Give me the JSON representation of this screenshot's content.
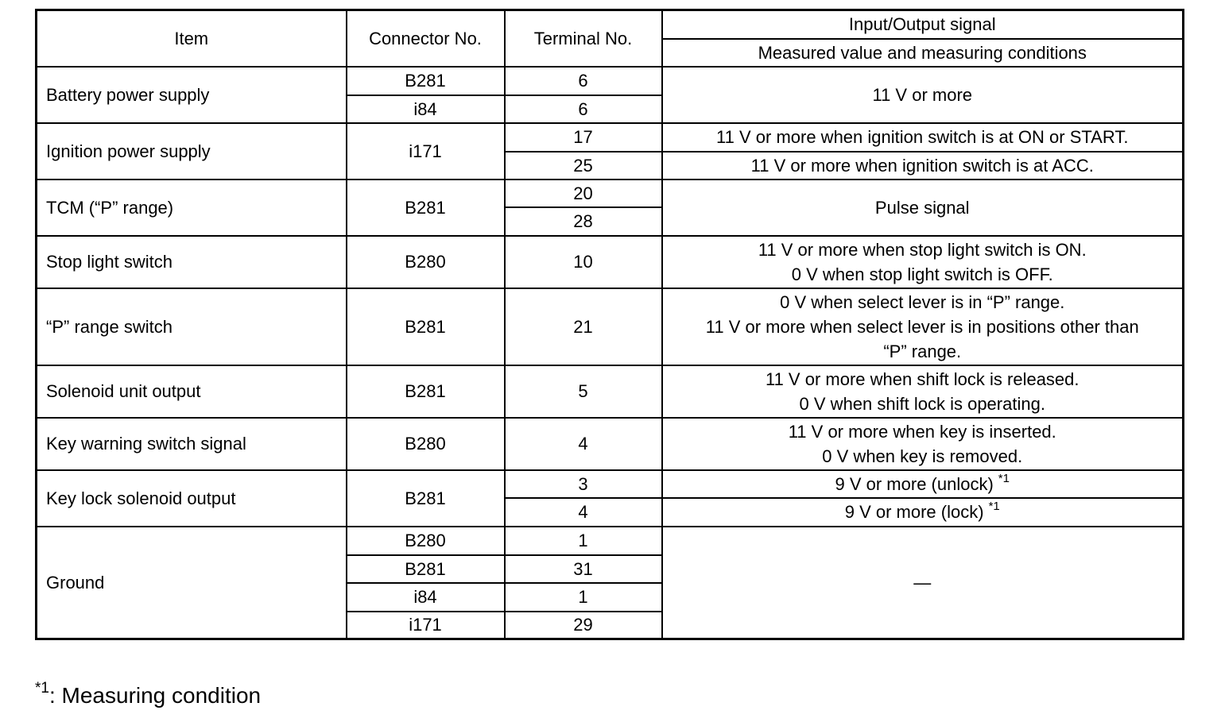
{
  "header": {
    "item": "Item",
    "connector": "Connector No.",
    "terminal": "Terminal No.",
    "signal": "Input/Output signal",
    "measured": "Measured value and measuring conditions"
  },
  "rows": [
    {
      "item": "Battery power supply",
      "connectors": [
        "B281",
        "i84"
      ],
      "terminals": [
        "6",
        "6"
      ],
      "values": [
        "11 V or more"
      ]
    },
    {
      "item": "Ignition power supply",
      "connectors": [
        "i171"
      ],
      "terminals": [
        "17",
        "25"
      ],
      "values": [
        "11 V or more when ignition switch is at ON or START.",
        "11 V or more when ignition switch is at ACC."
      ]
    },
    {
      "item": "TCM (“P” range)",
      "connectors": [
        "B281"
      ],
      "terminals": [
        "20",
        "28"
      ],
      "values": [
        "Pulse signal"
      ]
    },
    {
      "item": "Stop light switch",
      "connectors": [
        "B280"
      ],
      "terminals": [
        "10"
      ],
      "values": [
        "11 V or more when stop light switch is ON.",
        "0 V when stop light switch is OFF."
      ]
    },
    {
      "item": "“P” range switch",
      "connectors": [
        "B281"
      ],
      "terminals": [
        "21"
      ],
      "values": [
        "0 V when select lever is in “P” range.",
        "11 V or more when select lever is in positions other than",
        "“P” range."
      ]
    },
    {
      "item": "Solenoid unit output",
      "connectors": [
        "B281"
      ],
      "terminals": [
        "5"
      ],
      "values": [
        "11 V or more when shift lock is released.",
        "0 V when shift lock is operating."
      ]
    },
    {
      "item": "Key warning switch signal",
      "connectors": [
        "B280"
      ],
      "terminals": [
        "4"
      ],
      "values": [
        "11 V or more when key is inserted.",
        "0 V when key is removed."
      ]
    },
    {
      "item": "Key lock solenoid output",
      "connectors": [
        "B281"
      ],
      "terminals": [
        "3",
        "4"
      ],
      "values": [
        "9 V or more (unlock)",
        "9 V or more (lock)"
      ],
      "note_mark": "*1"
    },
    {
      "item": "Ground",
      "connectors": [
        "B280",
        "B281",
        "i84",
        "i171"
      ],
      "terminals": [
        "1",
        "31",
        "1",
        "29"
      ],
      "values": [
        "—"
      ]
    }
  ],
  "footnote": {
    "mark": "*1",
    "text": ": Measuring condition"
  }
}
